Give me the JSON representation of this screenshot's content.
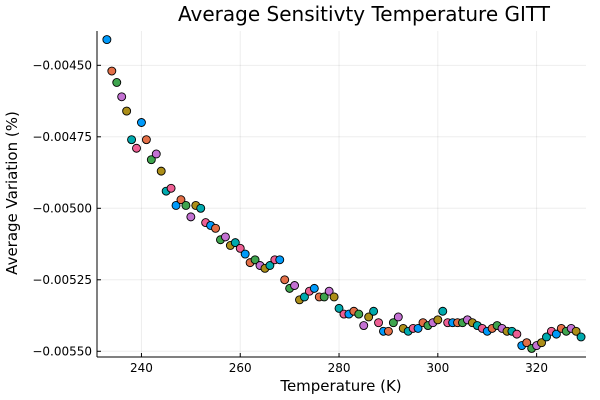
{
  "chart_data": {
    "type": "scatter",
    "title": "Average Sensitivty Temperature GITT",
    "xlabel": "Temperature (K)",
    "ylabel": "Average Variation (%)",
    "xlim": [
      231,
      330
    ],
    "ylim": [
      -0.00552,
      -0.00438
    ],
    "x_ticks": [
      240,
      260,
      280,
      300,
      320
    ],
    "x_tick_labels": [
      "240",
      "260",
      "280",
      "300",
      "320"
    ],
    "y_ticks": [
      -0.0045,
      -0.00475,
      -0.005,
      -0.00525,
      -0.0055
    ],
    "y_tick_labels": [
      "−0.00450",
      "−0.00475",
      "−0.00500",
      "−0.00525",
      "−0.00550"
    ],
    "grid": true,
    "legend": "none",
    "palette": [
      "#009AFA",
      "#E36F47",
      "#3EA44E",
      "#C371D2",
      "#AC8E18",
      "#00AAAE",
      "#ED5E93"
    ],
    "x": [
      233,
      234,
      235,
      236,
      237,
      238,
      239,
      240,
      241,
      242,
      243,
      244,
      245,
      246,
      247,
      248,
      249,
      250,
      251,
      252,
      253,
      254,
      255,
      256,
      257,
      258,
      259,
      260,
      261,
      262,
      263,
      264,
      265,
      266,
      267,
      268,
      269,
      270,
      271,
      272,
      273,
      274,
      275,
      276,
      277,
      278,
      279,
      280,
      281,
      282,
      283,
      284,
      285,
      286,
      287,
      288,
      289,
      290,
      291,
      292,
      293,
      294,
      295,
      296,
      297,
      298,
      299,
      300,
      301,
      302,
      303,
      304,
      305,
      306,
      307,
      308,
      309,
      310,
      311,
      312,
      313,
      314,
      315,
      316,
      317,
      318,
      319,
      320,
      321,
      322,
      323,
      324,
      325,
      326,
      327,
      328,
      329
    ],
    "y": [
      -0.00441,
      -0.00452,
      -0.00456,
      -0.00461,
      -0.00466,
      -0.00476,
      -0.00479,
      -0.0047,
      -0.00476,
      -0.00483,
      -0.00481,
      -0.00487,
      -0.00494,
      -0.00493,
      -0.00499,
      -0.00497,
      -0.00499,
      -0.00503,
      -0.00499,
      -0.005,
      -0.00505,
      -0.00506,
      -0.00507,
      -0.00511,
      -0.0051,
      -0.00513,
      -0.00512,
      -0.00514,
      -0.00516,
      -0.00519,
      -0.00518,
      -0.0052,
      -0.00521,
      -0.0052,
      -0.00518,
      -0.00518,
      -0.00525,
      -0.00528,
      -0.00527,
      -0.00532,
      -0.00531,
      -0.00529,
      -0.00528,
      -0.00531,
      -0.00531,
      -0.00529,
      -0.00531,
      -0.00535,
      -0.00537,
      -0.00537,
      -0.00536,
      -0.00537,
      -0.00541,
      -0.00538,
      -0.00536,
      -0.0054,
      -0.00543,
      -0.00543,
      -0.0054,
      -0.00538,
      -0.00542,
      -0.00543,
      -0.00542,
      -0.00542,
      -0.0054,
      -0.00541,
      -0.0054,
      -0.00539,
      -0.00536,
      -0.0054,
      -0.0054,
      -0.0054,
      -0.0054,
      -0.00539,
      -0.0054,
      -0.00541,
      -0.00542,
      -0.00543,
      -0.00542,
      -0.00541,
      -0.00542,
      -0.00543,
      -0.00543,
      -0.00544,
      -0.00548,
      -0.00547,
      -0.00549,
      -0.00548,
      -0.00547,
      -0.00545,
      -0.00543,
      -0.00544,
      -0.00542,
      -0.00543,
      -0.00542,
      -0.00543,
      -0.00545
    ]
  }
}
